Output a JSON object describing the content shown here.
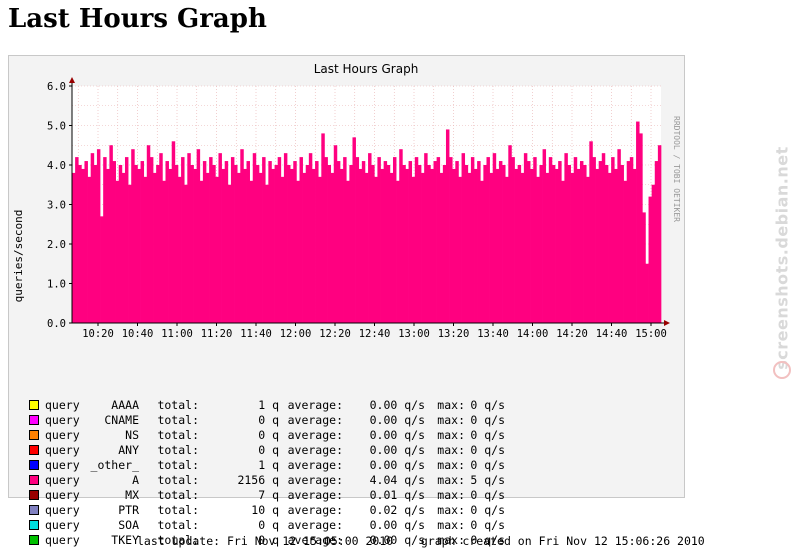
{
  "page": {
    "title": "Last Hours Graph"
  },
  "watermark": {
    "text": "screenshots.debian.net"
  },
  "chart_data": {
    "type": "area",
    "title": "Last Hours Graph",
    "ylabel": "queries/second",
    "side_label": "RRDTOOL / TOBI OETIKER",
    "ylim": [
      0,
      6
    ],
    "yticks": [
      "0.0",
      "1.0",
      "2.0",
      "3.0",
      "4.0",
      "5.0",
      "6.0"
    ],
    "xticks": [
      "10:20",
      "10:40",
      "11:00",
      "11:20",
      "11:40",
      "12:00",
      "12:20",
      "12:40",
      "13:00",
      "13:20",
      "13:40",
      "14:00",
      "14:20",
      "14:40",
      "15:00"
    ],
    "grid": true,
    "colors": {
      "area": "#ff0080",
      "background": "#f3f3f3",
      "grid_minor": "#e8b0b0",
      "axis_arrow": "#990000"
    },
    "series": [
      {
        "name": "A",
        "color": "#ff0080",
        "values": [
          3.8,
          4.2,
          4.0,
          3.9,
          4.1,
          3.7,
          4.3,
          4.0,
          4.4,
          2.7,
          4.2,
          3.9,
          4.5,
          4.1,
          3.6,
          4.0,
          3.8,
          4.2,
          3.5,
          4.4,
          4.0,
          3.9,
          4.1,
          3.7,
          4.5,
          4.2,
          3.8,
          4.0,
          4.3,
          3.6,
          4.1,
          3.9,
          4.6,
          4.0,
          3.7,
          4.2,
          3.5,
          4.3,
          4.0,
          3.9,
          4.4,
          3.6,
          4.1,
          3.8,
          4.2,
          4.0,
          3.7,
          4.3,
          3.9,
          4.1,
          3.5,
          4.2,
          4.0,
          3.8,
          4.4,
          3.9,
          4.1,
          3.6,
          4.3,
          4.0,
          3.8,
          4.2,
          3.5,
          4.1,
          3.9,
          4.0,
          4.2,
          3.7,
          4.3,
          4.0,
          3.9,
          4.1,
          3.6,
          4.2,
          3.8,
          4.0,
          4.3,
          3.9,
          4.1,
          3.7,
          4.8,
          4.2,
          4.0,
          3.8,
          4.5,
          4.1,
          3.9,
          4.2,
          3.6,
          4.0,
          4.7,
          4.2,
          3.9,
          4.1,
          3.8,
          4.3,
          4.0,
          3.7,
          4.2,
          3.9,
          4.1,
          4.0,
          3.8,
          4.2,
          3.6,
          4.4,
          4.0,
          3.9,
          4.1,
          3.7,
          4.2,
          4.0,
          3.8,
          4.3,
          4.0,
          3.9,
          4.1,
          4.2,
          3.8,
          4.0,
          4.9,
          4.2,
          3.9,
          4.1,
          3.7,
          4.3,
          4.0,
          3.8,
          4.2,
          3.9,
          4.1,
          3.6,
          4.0,
          4.2,
          3.8,
          4.3,
          3.9,
          4.1,
          4.0,
          3.7,
          4.5,
          4.2,
          3.9,
          4.0,
          3.8,
          4.3,
          4.1,
          3.9,
          4.2,
          3.7,
          4.0,
          4.4,
          3.8,
          4.2,
          4.0,
          3.9,
          4.1,
          3.6,
          4.3,
          4.0,
          3.8,
          4.2,
          3.9,
          4.1,
          4.0,
          3.7,
          4.6,
          4.2,
          3.9,
          4.1,
          4.3,
          4.0,
          3.8,
          4.2,
          3.9,
          4.4,
          4.0,
          3.6,
          4.1,
          4.2,
          3.9,
          5.1,
          4.8,
          2.8,
          1.5,
          3.2,
          3.5,
          4.1,
          4.5
        ]
      }
    ]
  },
  "legend": [
    {
      "label": "query",
      "type": "AAAA",
      "total_label": "total:",
      "total": "1 q",
      "avg_label": "average:",
      "avg": "0.00 q/s",
      "max_label": "max:",
      "max": "0 q/s",
      "color": "#ffff00"
    },
    {
      "label": "query",
      "type": "CNAME",
      "total_label": "total:",
      "total": "0 q",
      "avg_label": "average:",
      "avg": "0.00 q/s",
      "max_label": "max:",
      "max": "0 q/s",
      "color": "#ff00ff"
    },
    {
      "label": "query",
      "type": "NS",
      "total_label": "total:",
      "total": "0 q",
      "avg_label": "average:",
      "avg": "0.00 q/s",
      "max_label": "max:",
      "max": "0 q/s",
      "color": "#ff8000"
    },
    {
      "label": "query",
      "type": "ANY",
      "total_label": "total:",
      "total": "0 q",
      "avg_label": "average:",
      "avg": "0.00 q/s",
      "max_label": "max:",
      "max": "0 q/s",
      "color": "#ff0000"
    },
    {
      "label": "query",
      "type": "_other_",
      "total_label": "total:",
      "total": "1 q",
      "avg_label": "average:",
      "avg": "0.00 q/s",
      "max_label": "max:",
      "max": "0 q/s",
      "color": "#0000ff"
    },
    {
      "label": "query",
      "type": "A",
      "total_label": "total:",
      "total": "2156 q",
      "avg_label": "average:",
      "avg": "4.04 q/s",
      "max_label": "max:",
      "max": "5 q/s",
      "color": "#ff0080"
    },
    {
      "label": "query",
      "type": "MX",
      "total_label": "total:",
      "total": "7 q",
      "avg_label": "average:",
      "avg": "0.01 q/s",
      "max_label": "max:",
      "max": "0 q/s",
      "color": "#990000"
    },
    {
      "label": "query",
      "type": "PTR",
      "total_label": "total:",
      "total": "10 q",
      "avg_label": "average:",
      "avg": "0.02 q/s",
      "max_label": "max:",
      "max": "0 q/s",
      "color": "#8080c0"
    },
    {
      "label": "query",
      "type": "SOA",
      "total_label": "total:",
      "total": "0 q",
      "avg_label": "average:",
      "avg": "0.00 q/s",
      "max_label": "max:",
      "max": "0 q/s",
      "color": "#00e0e0"
    },
    {
      "label": "query",
      "type": "TKEY",
      "total_label": "total:",
      "total": "0 q",
      "avg_label": "average:",
      "avg": "0.00 q/s",
      "max_label": "max:",
      "max": "0 q/s",
      "color": "#00c000"
    }
  ],
  "footer": {
    "text": "last update: Fri Nov 12 15:05:00 2010    graph created on Fri Nov 12 15:06:26 2010"
  }
}
